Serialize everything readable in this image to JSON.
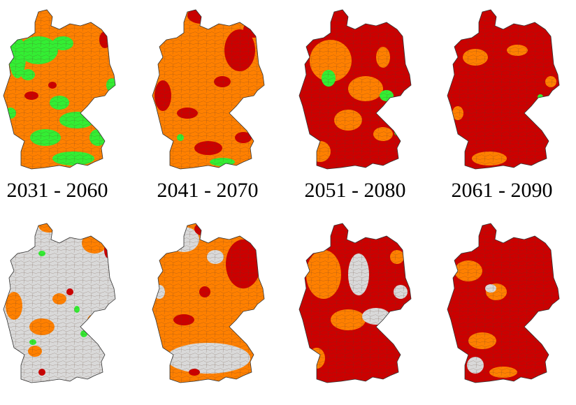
{
  "labels": [
    "2031 - 2060",
    "2041 - 2070",
    "2051 - 2080",
    "2061 - 2090"
  ]
}
